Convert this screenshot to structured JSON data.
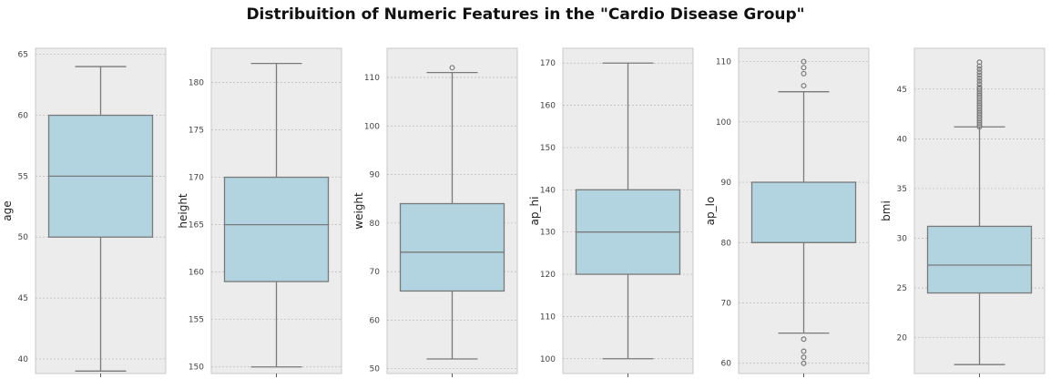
{
  "chart_data": {
    "type": "box",
    "title": "Distribuition of Numeric Features in the \"Cardio Disease Group\"",
    "colors": {
      "box_fill": "#b1d4e0",
      "box_edge": "#7a7a7a",
      "panel_bg": "#ececec",
      "grid": "#b8b8b8",
      "frame": "#c8c8c8"
    },
    "grid": true,
    "panels": [
      {
        "ylabel": "age",
        "ylim": [
          38.8,
          65.5
        ],
        "ticks": [
          40,
          45,
          50,
          55,
          60,
          65
        ],
        "whisker_low": 39,
        "q1": 50,
        "median": 55,
        "q3": 60,
        "whisker_high": 64,
        "outliers": []
      },
      {
        "ylabel": "height",
        "ylim": [
          149.3,
          183.6
        ],
        "ticks": [
          150,
          155,
          160,
          165,
          170,
          175,
          180
        ],
        "whisker_low": 150,
        "q1": 159,
        "median": 165,
        "q3": 170,
        "whisker_high": 182,
        "outliers": []
      },
      {
        "ylabel": "weight",
        "ylim": [
          49,
          116
        ],
        "ticks": [
          50,
          60,
          70,
          80,
          90,
          100,
          110
        ],
        "whisker_low": 52,
        "q1": 66,
        "median": 74,
        "q3": 84,
        "whisker_high": 111,
        "outliers": [
          112
        ]
      },
      {
        "ylabel": "ap_hi",
        "ylim": [
          96.5,
          173.5
        ],
        "ticks": [
          100,
          110,
          120,
          130,
          140,
          150,
          160,
          170
        ],
        "whisker_low": 100,
        "q1": 120,
        "median": 130,
        "q3": 140,
        "whisker_high": 170,
        "outliers": []
      },
      {
        "ylabel": "ap_lo",
        "ylim": [
          58.3,
          112.2
        ],
        "ticks": [
          60,
          70,
          80,
          90,
          100,
          110
        ],
        "whisker_low": 65,
        "q1": 80,
        "median": 80,
        "q3": 90,
        "whisker_high": 105,
        "outliers": [
          60,
          61,
          62,
          64,
          106,
          108,
          109,
          110
        ]
      },
      {
        "ylabel": "bmi",
        "ylim": [
          16.4,
          49.1
        ],
        "ticks": [
          20,
          25,
          30,
          35,
          40,
          45
        ],
        "whisker_low": 17.3,
        "q1": 24.5,
        "median": 27.3,
        "q3": 31.2,
        "whisker_high": 41.2,
        "outliers": [
          41.2,
          41.4,
          41.6,
          41.8,
          42.0,
          42.2,
          42.4,
          42.6,
          42.8,
          43.0,
          43.2,
          43.4,
          43.6,
          43.8,
          44.0,
          44.2,
          44.4,
          44.6,
          44.8,
          45.0,
          45.2,
          45.5,
          45.8,
          46.1,
          46.4,
          46.7,
          47.0,
          47.3,
          47.7
        ]
      }
    ]
  }
}
